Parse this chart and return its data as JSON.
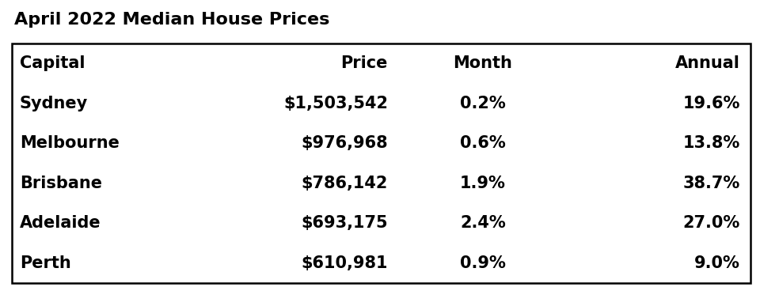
{
  "title": "April 2022 Median House Prices",
  "col_headers": [
    "Capital",
    "Price",
    "Month",
    "Annual"
  ],
  "rows": [
    [
      "Sydney",
      "$1,503,542",
      "0.2%",
      "19.6%"
    ],
    [
      "Melbourne",
      "$976,968",
      "0.6%",
      "13.8%"
    ],
    [
      "Brisbane",
      "$786,142",
      "1.9%",
      "38.7%"
    ],
    [
      "Adelaide",
      "$693,175",
      "2.4%",
      "27.0%"
    ],
    [
      "Perth",
      "$610,981",
      "0.9%",
      "9.0%"
    ]
  ],
  "col_aligns": [
    "left",
    "right",
    "center",
    "right"
  ],
  "header_align": [
    "left",
    "right",
    "center",
    "right"
  ],
  "background_color": "#ffffff",
  "title_fontsize": 16,
  "header_fontsize": 15,
  "cell_fontsize": 15,
  "font_weight_title": "bold",
  "font_weight_header": "bold",
  "font_weight_cell": "bold",
  "font_family": "DejaVu Sans"
}
